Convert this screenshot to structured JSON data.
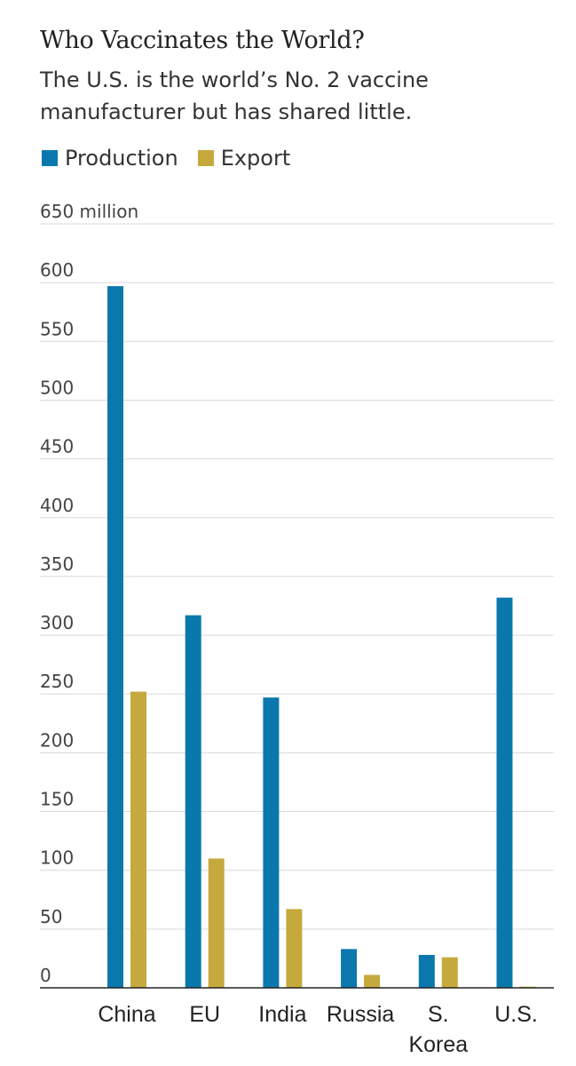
{
  "chart_data": {
    "type": "bar",
    "title": "Who Vaccinates the World?",
    "subtitle": "The U.S. is the world’s No. 2 vaccine manufacturer but has shared little.",
    "categories": [
      [
        "China"
      ],
      [
        "EU"
      ],
      [
        "India"
      ],
      [
        "Russia"
      ],
      [
        "S.",
        "Korea"
      ],
      [
        "U.S."
      ]
    ],
    "series": [
      {
        "name": "Production",
        "color": "#0a78ad",
        "values": [
          597,
          317,
          247,
          33,
          28,
          332
        ]
      },
      {
        "name": "Export",
        "color": "#c5a93d",
        "values": [
          252,
          110,
          67,
          11,
          26,
          1
        ]
      }
    ],
    "ylim": [
      0,
      650
    ],
    "yticks": [
      0,
      50,
      100,
      150,
      200,
      250,
      300,
      350,
      400,
      450,
      500,
      550,
      600,
      650
    ],
    "ytick_labels": [
      "0",
      "50",
      "100",
      "150",
      "200",
      "250",
      "300",
      "350",
      "400",
      "450",
      "500",
      "550",
      "600",
      "650 million"
    ],
    "grid": true,
    "legend_position": "top-left"
  }
}
